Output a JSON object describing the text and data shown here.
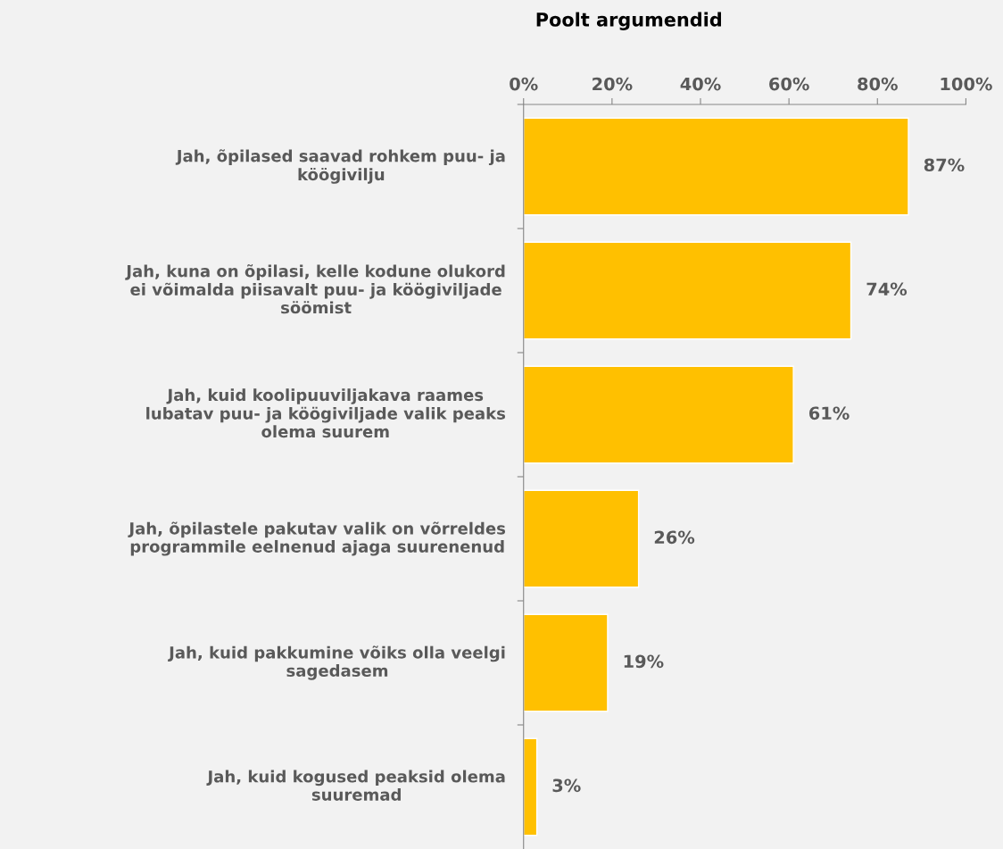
{
  "chart_data": {
    "type": "bar",
    "orientation": "horizontal",
    "title": "Poolt argumendid",
    "categories": [
      "Jah, õpilased saavad rohkem puu- ja\nköögivilju",
      "Jah, kuna on õpilasi, kelle kodune olukord\nei võimalda piisavalt puu- ja köögiviljade\nsöömist",
      "Jah, kuid koolipuuviljakava raames\nlubatav puu- ja köögiviljade valik peaks\nolema suurem",
      "Jah, õpilastele pakutav valik on võrreldes\nprogrammile eelnenud ajaga suurenenud",
      "Jah, kuid pakkumine võiks olla veelgi\nsagedasem",
      "Jah, kuid kogused peaksid olema\nsuuremad"
    ],
    "values": [
      87,
      74,
      61,
      26,
      19,
      3
    ],
    "value_labels": [
      "87%",
      "74%",
      "61%",
      "26%",
      "19%",
      "3%"
    ],
    "color": "#ffc000",
    "xlim": [
      0,
      100
    ],
    "xticks": [
      {
        "value": 0,
        "label": "0%"
      },
      {
        "value": 20,
        "label": "20%"
      },
      {
        "value": 40,
        "label": "40%"
      },
      {
        "value": 60,
        "label": "60%"
      },
      {
        "value": 80,
        "label": "80%"
      },
      {
        "value": 100,
        "label": "100%"
      }
    ],
    "grid": false,
    "legend": false
  }
}
